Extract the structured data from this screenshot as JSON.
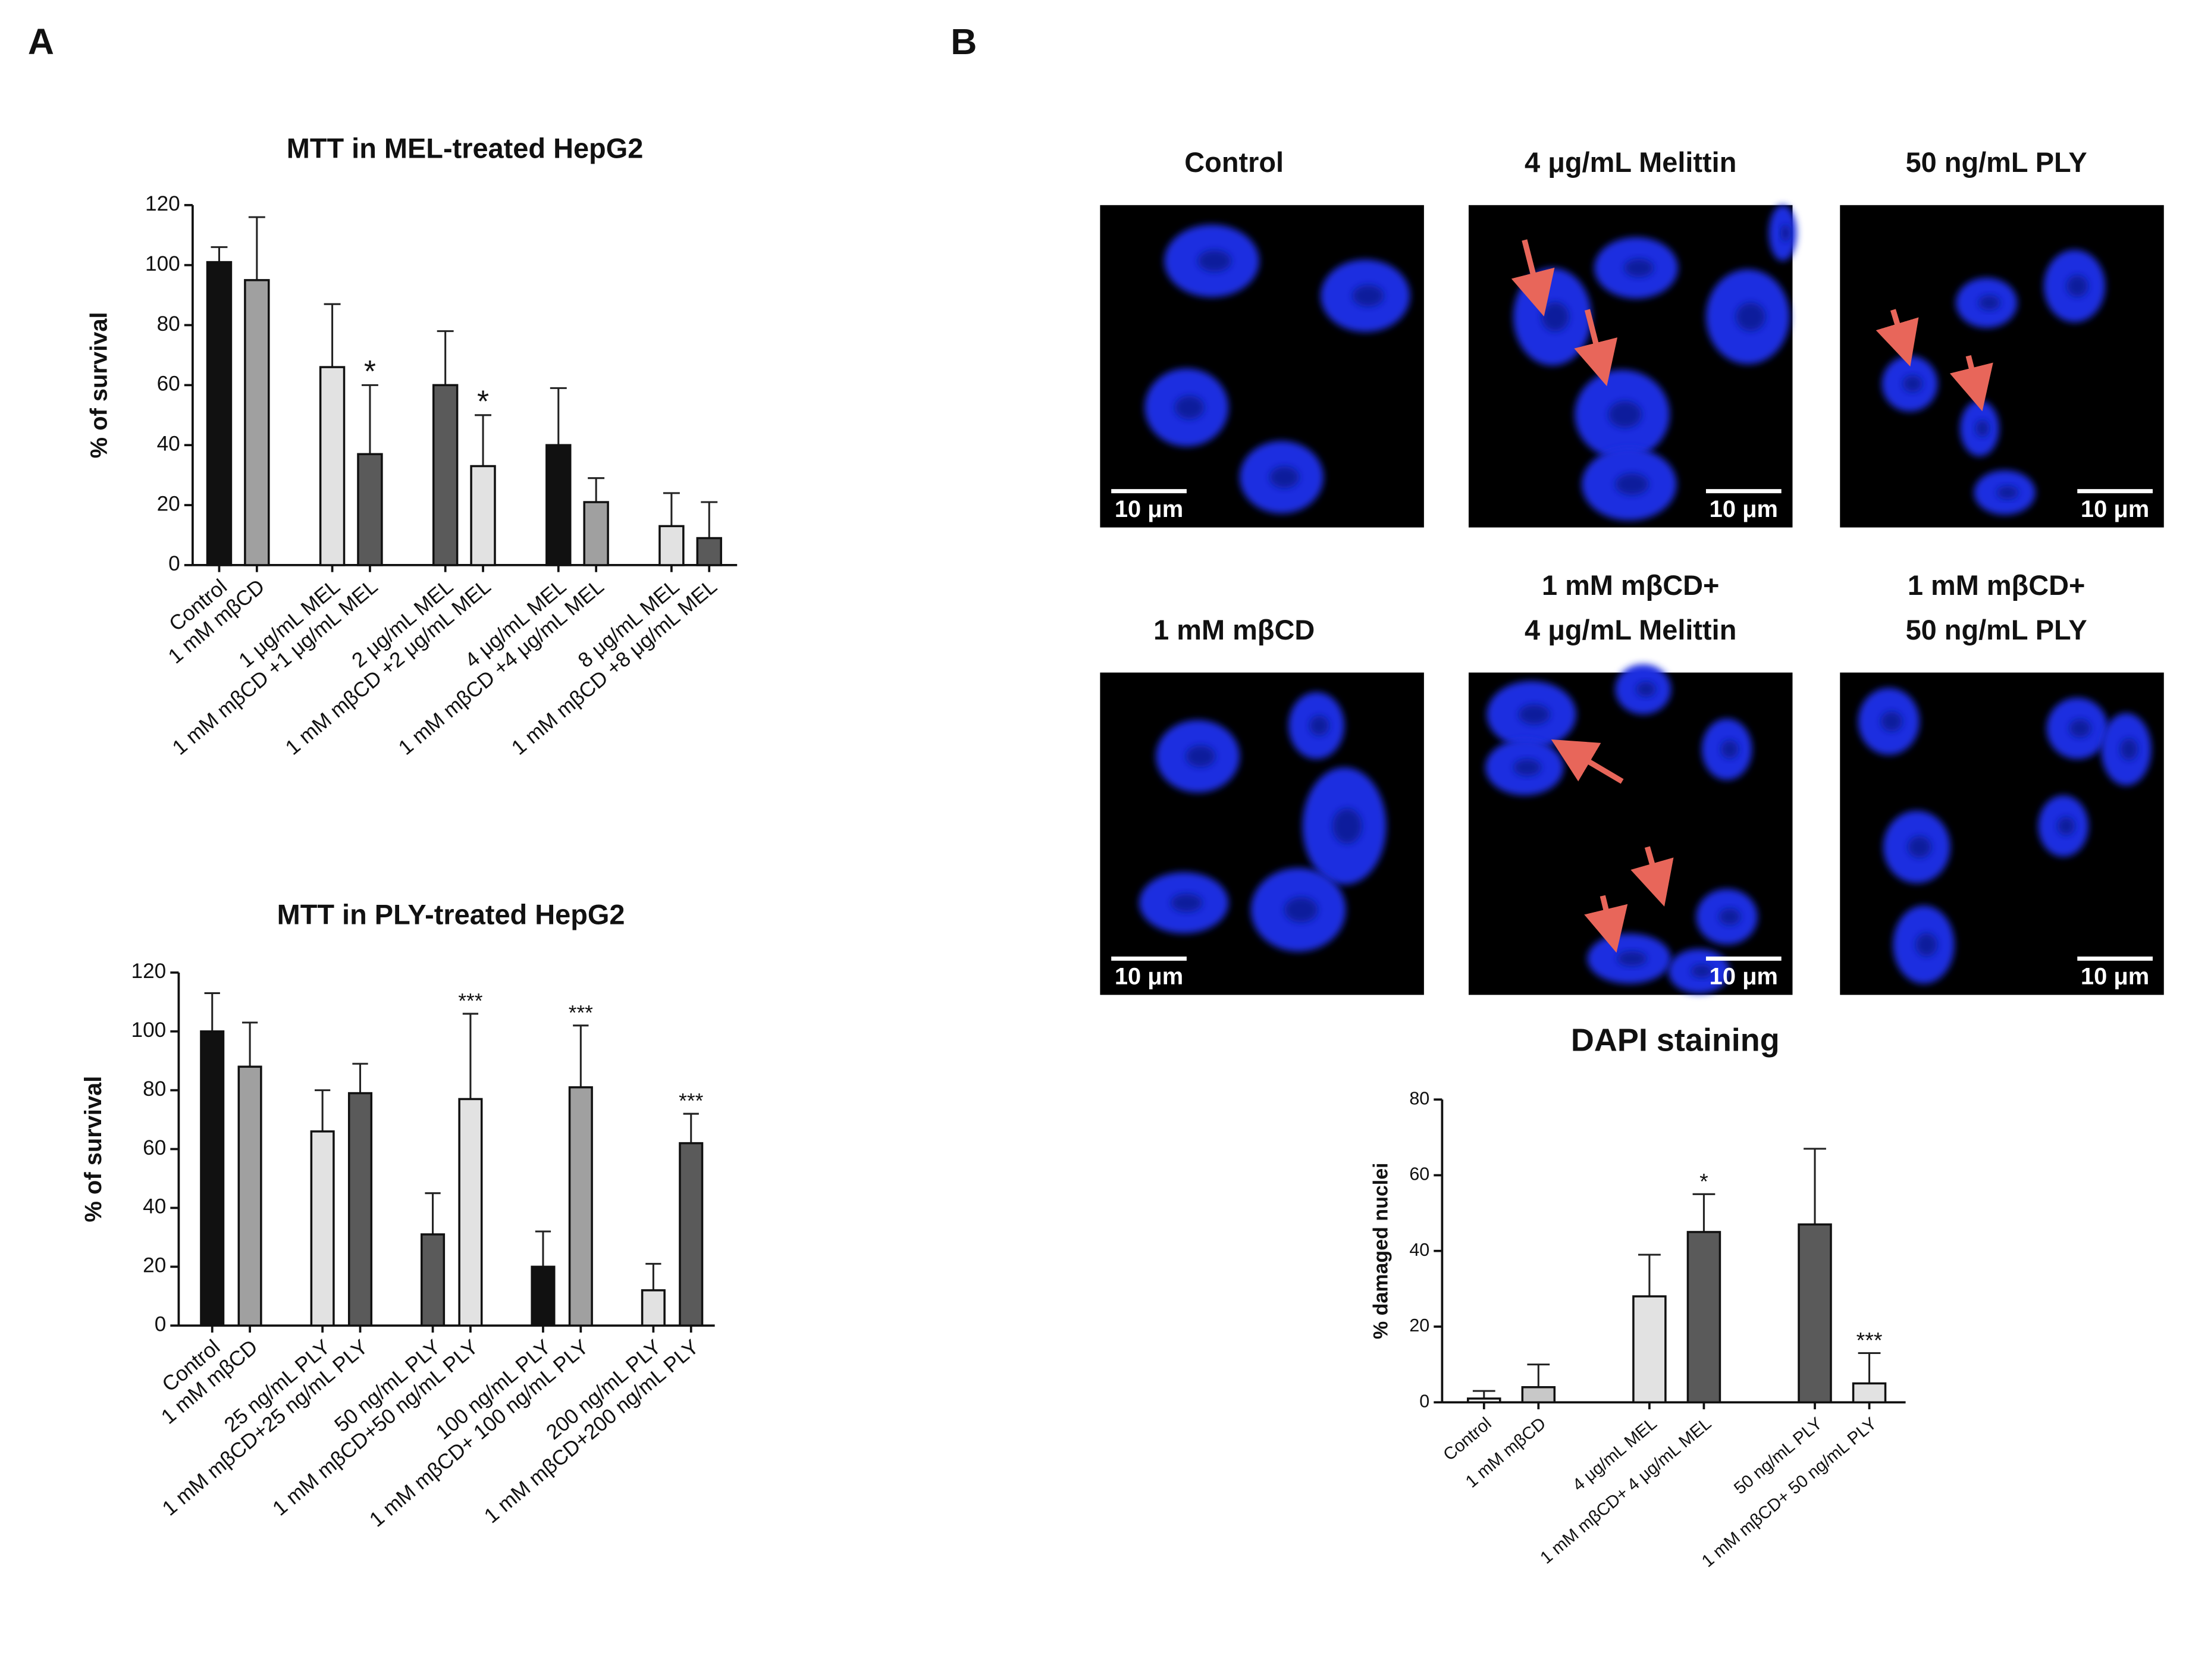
{
  "panel_labels": [
    "A",
    "B"
  ],
  "chart_data": [
    {
      "type": "bar",
      "title": "MTT in MEL-treated HepG2",
      "ylabel": "% of survival",
      "categories": [
        "Control",
        "1 mM mβCD",
        "1 μg/mL MEL",
        "1 mM mβCD +1 μg/mL MEL",
        "2 μg/mL MEL",
        "1 mM mβCD +2  μg/mL MEL",
        "4 μg/mL MEL",
        "1 mM mβCD +4 μg/mL MEL",
        "8 μg/mL MEL",
        "1 mM mβCD +8  μg/mL MEL"
      ],
      "values": [
        101,
        95,
        66,
        37,
        60,
        33,
        40,
        21,
        13,
        9
      ],
      "errors": [
        5,
        21,
        21,
        23,
        18,
        17,
        19,
        8,
        11,
        12
      ],
      "colors": [
        "#111111",
        "#a0a0a0",
        "#e2e2e2",
        "#5a5a5a",
        "#5a5a5a",
        "#e2e2e2",
        "#111111",
        "#a0a0a0",
        "#e2e2e2",
        "#5a5a5a"
      ],
      "annotations": [
        null,
        null,
        null,
        "*",
        null,
        "*",
        null,
        null,
        null,
        null
      ],
      "ylim": [
        0,
        120
      ],
      "yticks": [
        0,
        20,
        40,
        60,
        80,
        100,
        120
      ]
    },
    {
      "type": "bar",
      "title": "MTT in PLY-treated HepG2",
      "ylabel": "% of survival",
      "categories": [
        "Control",
        "1 mM mβCD",
        "25 ng/mL PLY",
        "1 mM mβCD+25 ng/mL PLY",
        "50 ng/mL PLY",
        "1 mM mβCD+50 ng/mL PLY",
        "100 ng/mL PLY",
        "1 mM mβCD+ 100 ng/mL PLY",
        "200 ng/mL PLY",
        "1 mM mβCD+200 ng/mL PLY"
      ],
      "values": [
        100,
        88,
        66,
        79,
        31,
        77,
        20,
        81,
        12,
        62
      ],
      "errors": [
        13,
        15,
        14,
        10,
        14,
        29,
        12,
        21,
        9,
        10
      ],
      "colors": [
        "#111111",
        "#a0a0a0",
        "#e2e2e2",
        "#5a5a5a",
        "#5a5a5a",
        "#e2e2e2",
        "#111111",
        "#a0a0a0",
        "#e2e2e2",
        "#5a5a5a"
      ],
      "annotations": [
        null,
        null,
        null,
        null,
        null,
        "***",
        null,
        "***",
        null,
        "***"
      ],
      "ylim": [
        0,
        120
      ],
      "yticks": [
        0,
        20,
        40,
        60,
        80,
        100,
        120
      ]
    },
    {
      "type": "bar",
      "title": "DAPI staining",
      "ylabel": "% damaged nuclei",
      "categories": [
        "Control",
        "1 mM mβCD",
        "4 μg/mL MEL",
        "1 mM mβCD+ 4 μg/mL MEL",
        "50 ng/mL PLY",
        "1 mM mβCD+ 50 ng/mL PLY"
      ],
      "values": [
        1,
        4,
        28,
        45,
        47,
        5
      ],
      "errors": [
        2,
        6,
        11,
        10,
        20,
        8
      ],
      "colors": [
        "#f4f4f4",
        "#c8c8c8",
        "#e2e2e2",
        "#5a5a5a",
        "#5a5a5a",
        "#e2e2e2"
      ],
      "annotations": [
        null,
        null,
        null,
        "*",
        null,
        "***"
      ],
      "ylim": [
        0,
        80
      ],
      "yticks": [
        0,
        20,
        40,
        60,
        80
      ]
    }
  ],
  "images": [
    {
      "title_lines": [
        "Control"
      ],
      "scale": "10 μm"
    },
    {
      "title_lines": [
        "4 μg/mL Melittin"
      ],
      "scale": "10 μm"
    },
    {
      "title_lines": [
        "50 ng/mL PLY"
      ],
      "scale": "10 μm"
    },
    {
      "title_lines": [
        "1 mM mβCD"
      ],
      "scale": "10 μm"
    },
    {
      "title_lines": [
        "1 mM mβCD+",
        "4 μg/mL Melittin"
      ],
      "scale": "10 μm"
    },
    {
      "title_lines": [
        "1 mM mβCD+",
        "50 ng/mL PLY"
      ],
      "scale": "10 μm"
    }
  ]
}
